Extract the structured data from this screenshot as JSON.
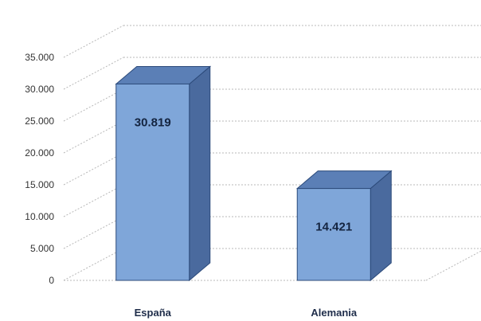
{
  "chart_data": {
    "type": "bar",
    "style": "3d-column",
    "categories": [
      "España",
      "Alemania"
    ],
    "values": [
      30819,
      14421
    ],
    "data_labels": [
      "30.819",
      "14.421"
    ],
    "y_ticks": [
      0,
      5000,
      10000,
      15000,
      20000,
      25000,
      30000,
      35000
    ],
    "y_tick_labels": [
      "0",
      "5.000",
      "10.000",
      "15.000",
      "20.000",
      "25.000",
      "30.000",
      "35.000"
    ],
    "ylim": [
      0,
      35000
    ],
    "grid": true,
    "legend": "none",
    "colors": {
      "bar_front": "#7fa6d9",
      "bar_top": "#5b7fb6",
      "bar_side": "#4a6a9e",
      "bar_edge": "#2c4a7a",
      "grid": "#b8b8b8",
      "text": "#1f2d4a"
    }
  }
}
